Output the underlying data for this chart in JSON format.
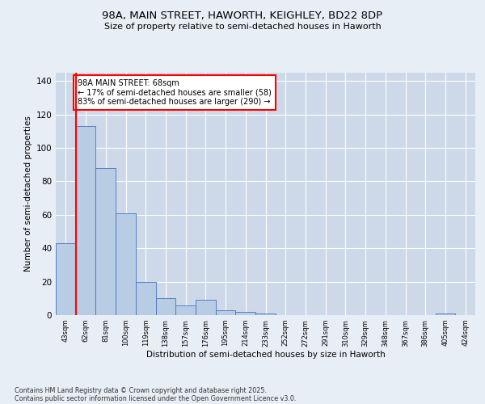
{
  "title_line1": "98A, MAIN STREET, HAWORTH, KEIGHLEY, BD22 8DP",
  "title_line2": "Size of property relative to semi-detached houses in Haworth",
  "xlabel": "Distribution of semi-detached houses by size in Haworth",
  "ylabel": "Number of semi-detached properties",
  "categories": [
    "43sqm",
    "62sqm",
    "81sqm",
    "100sqm",
    "119sqm",
    "138sqm",
    "157sqm",
    "176sqm",
    "195sqm",
    "214sqm",
    "233sqm",
    "252sqm",
    "272sqm",
    "291sqm",
    "310sqm",
    "329sqm",
    "348sqm",
    "367sqm",
    "386sqm",
    "405sqm",
    "424sqm"
  ],
  "values": [
    43,
    113,
    88,
    61,
    20,
    10,
    6,
    9,
    3,
    2,
    1,
    0,
    0,
    0,
    0,
    0,
    0,
    0,
    0,
    1,
    0
  ],
  "bar_color": "#b8cce4",
  "bar_edge_color": "#4472c4",
  "subject_bin_index": 1,
  "annotation_text": "98A MAIN STREET: 68sqm\n← 17% of semi-detached houses are smaller (58)\n83% of semi-detached houses are larger (290) →",
  "ylim": [
    0,
    145
  ],
  "yticks": [
    0,
    20,
    40,
    60,
    80,
    100,
    120,
    140
  ],
  "footer_line1": "Contains HM Land Registry data © Crown copyright and database right 2025.",
  "footer_line2": "Contains public sector information licensed under the Open Government Licence v3.0.",
  "fig_bg_color": "#e8eef5",
  "plot_bg_color": "#cdd9e8"
}
